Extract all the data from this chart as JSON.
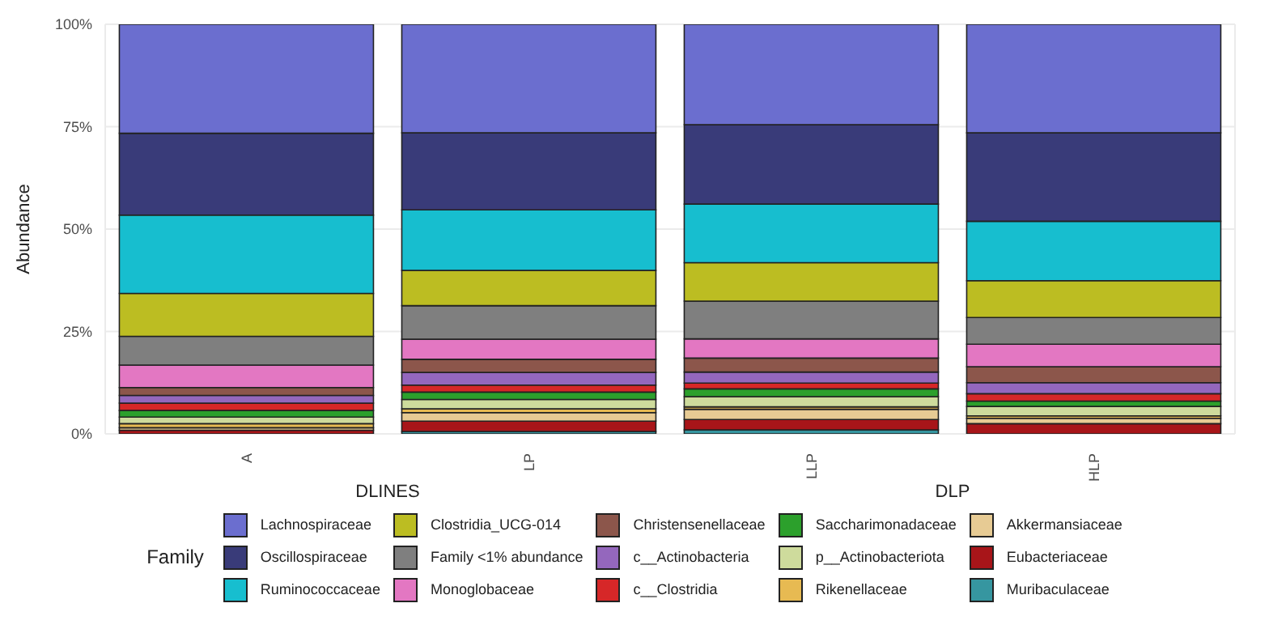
{
  "chart_data": {
    "type": "bar",
    "stacked": true,
    "ylabel": "Abundance",
    "legend_title": "Family",
    "legend": "bottom",
    "grid": true,
    "categories": [
      "A",
      "LP",
      "LLP",
      "HLP"
    ],
    "ylim": [
      0,
      100
    ],
    "yticks": [
      {
        "value": 0,
        "label": "0%"
      },
      {
        "value": 25,
        "label": "25%"
      },
      {
        "value": 50,
        "label": "50%"
      },
      {
        "value": 75,
        "label": "75%"
      },
      {
        "value": 100,
        "label": "100%"
      }
    ],
    "annotations": [
      "DLINES",
      "DLP"
    ],
    "series": [
      {
        "name": "Muribaculaceae",
        "color": "#3696a0",
        "values": [
          null,
          0.6,
          1.0,
          null
        ]
      },
      {
        "name": "Eubacteriaceae",
        "color": "#a81519",
        "values": [
          0.9,
          2.5,
          2.5,
          2.5
        ]
      },
      {
        "name": "Akkermansiaceae",
        "color": "#e7cb94",
        "values": [
          0.6,
          2.1,
          2.5,
          1.3
        ]
      },
      {
        "name": "Rikenellaceae",
        "color": "#e7ba52",
        "values": [
          1.0,
          0.9,
          0.6,
          0.6
        ]
      },
      {
        "name": "p__Actinobacteriota",
        "color": "#cedb9c",
        "values": [
          1.6,
          2.3,
          2.5,
          2.3
        ]
      },
      {
        "name": "Saccharimonadaceae",
        "color": "#2ca02c",
        "values": [
          1.6,
          1.8,
          1.9,
          1.3
        ]
      },
      {
        "name": "c__Clostridia",
        "color": "#d62728",
        "values": [
          1.8,
          1.7,
          1.4,
          1.8
        ]
      },
      {
        "name": "c__Actinobacteria",
        "color": "#9467bd",
        "values": [
          1.9,
          3.1,
          2.7,
          2.7
        ]
      },
      {
        "name": "Christensenellaceae",
        "color": "#8c564b",
        "values": [
          1.9,
          3.2,
          3.4,
          3.9
        ]
      },
      {
        "name": "Monoglobaceae",
        "color": "#e377c2",
        "values": [
          5.5,
          4.9,
          4.7,
          5.5
        ]
      },
      {
        "name": "Family <1% abundance",
        "color": "#7f7f7f",
        "values": [
          7.0,
          8.2,
          9.2,
          6.5
        ]
      },
      {
        "name": "Clostridia_UCG-014",
        "color": "#bcbd22",
        "values": [
          10.5,
          8.6,
          9.4,
          9.0
        ]
      },
      {
        "name": "Ruminococcaceae",
        "color": "#17becf",
        "values": [
          19.1,
          14.8,
          14.3,
          14.5
        ]
      },
      {
        "name": "Oscillospiraceae",
        "color": "#393b79",
        "values": [
          20.0,
          18.8,
          19.4,
          21.6
        ]
      },
      {
        "name": "Lachnospiraceae",
        "color": "#6b6ecf",
        "values": [
          26.6,
          26.5,
          24.5,
          26.5
        ]
      }
    ]
  }
}
